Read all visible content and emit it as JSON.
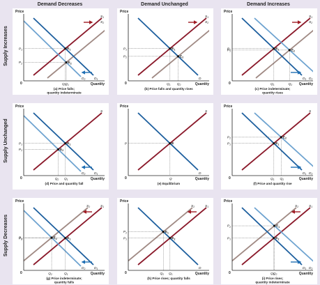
{
  "column_headers": [
    "Demand Decreases",
    "Demand Unchanged",
    "Demand Increases"
  ],
  "row_headers": [
    "Supply Increases",
    "Supply Unchanged",
    "Supply Decreases"
  ],
  "axis_labels": {
    "y": "Price",
    "x": "Quantity",
    "origin": "0"
  },
  "colors": {
    "supply": "#8b1a2b",
    "supply_shift": "#a08a84",
    "demand": "#1d5f9e",
    "demand_shift": "#6ea3d0",
    "arrow_supply": "#a01c25",
    "arrow_demand": "#1f6fb4",
    "panel_bg": "#ffffff",
    "outer_bg": "#e9e4f0"
  },
  "panels": [
    {
      "id": "a",
      "caption1": "(a) Price falls;",
      "caption2": "quantity indeterminate",
      "price_labels": [
        "P1",
        "P2"
      ],
      "qty_labels": [
        "Q2",
        "Q1"
      ],
      "eq_labels": [
        "E1",
        "E2"
      ],
      "supply_labels": [
        "S1",
        "S2"
      ],
      "demand_labels": [
        "D2",
        "D1"
      ]
    },
    {
      "id": "b",
      "caption1": "(b) Price falls and quantity rises",
      "caption2": "",
      "price_labels": [
        "P1",
        "P2"
      ],
      "qty_labels": [
        "Q1",
        "Q2"
      ],
      "eq_labels": [
        "E1",
        "E2"
      ],
      "supply_labels": [
        "S1",
        "S2"
      ],
      "demand_labels": [
        "D"
      ]
    },
    {
      "id": "c",
      "caption1": "(c) Price indeterminate;",
      "caption2": "quantity rises",
      "price_labels": [
        "P2",
        "P1"
      ],
      "qty_labels": [
        "Q1",
        "Q2"
      ],
      "eq_labels": [
        "E1",
        "E2"
      ],
      "supply_labels": [
        "S1",
        "S2"
      ],
      "demand_labels": [
        "D1",
        "D2"
      ]
    },
    {
      "id": "d",
      "caption1": "(d) Price and quantity fall",
      "caption2": "",
      "price_labels": [
        "P1",
        "P2"
      ],
      "qty_labels": [
        "Q2",
        "Q1"
      ],
      "eq_labels": [
        "E1",
        "E2"
      ],
      "supply_labels": [
        "S"
      ],
      "demand_labels": [
        "D2",
        "D1"
      ]
    },
    {
      "id": "e",
      "caption1": "(e) Equilibrium",
      "caption2": "",
      "price_labels": [
        "P"
      ],
      "qty_labels": [
        "Q"
      ],
      "eq_labels": [
        "E"
      ],
      "supply_labels": [
        "S"
      ],
      "demand_labels": [
        "D"
      ]
    },
    {
      "id": "f",
      "caption1": "(f) Price and quantity rise",
      "caption2": "",
      "price_labels": [
        "P2",
        "P1"
      ],
      "qty_labels": [
        "Q1",
        "Q2"
      ],
      "eq_labels": [
        "E1",
        "E2"
      ],
      "supply_labels": [
        "S"
      ],
      "demand_labels": [
        "D1",
        "D2"
      ]
    },
    {
      "id": "g",
      "caption1": "(g) Price indeterminate;",
      "caption2": "quantity falls",
      "price_labels": [
        "P1",
        "P2"
      ],
      "qty_labels": [
        "Q2",
        "Q1"
      ],
      "eq_labels": [
        "E1",
        "E2"
      ],
      "supply_labels": [
        "S2",
        "S1"
      ],
      "demand_labels": [
        "D2",
        "D1"
      ]
    },
    {
      "id": "h",
      "caption1": "(h) Price rises; quantity falls",
      "caption2": "",
      "price_labels": [
        "P2",
        "P1"
      ],
      "qty_labels": [
        "Q2",
        "Q1"
      ],
      "eq_labels": [
        "E2",
        "E1"
      ],
      "supply_labels": [
        "S2",
        "S1"
      ],
      "demand_labels": [
        "D"
      ]
    },
    {
      "id": "i",
      "caption1": "(i) Price rises;",
      "caption2": "quantity indeterminate",
      "price_labels": [
        "P2",
        "P1"
      ],
      "qty_labels": [
        "Q1",
        "Q2"
      ],
      "eq_labels": [
        "E2",
        "E1"
      ],
      "supply_labels": [
        "S2",
        "S1"
      ],
      "demand_labels": [
        "D1",
        "D2"
      ]
    }
  ]
}
